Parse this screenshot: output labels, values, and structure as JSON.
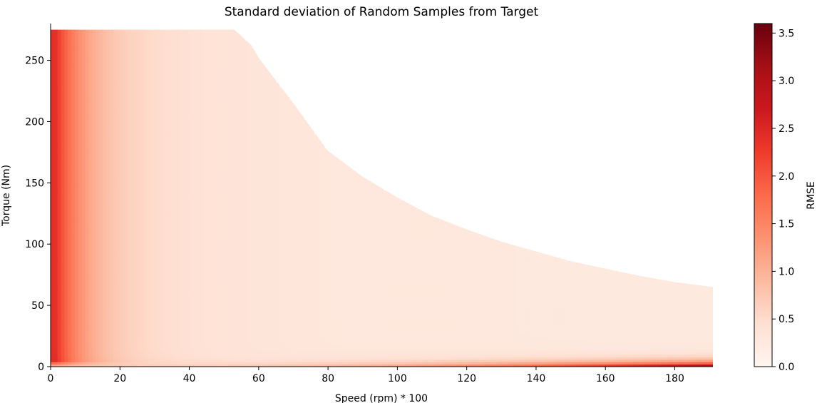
{
  "chart_data": {
    "type": "heatmap",
    "title": "Standard deviation of Random Samples from Target",
    "xlabel": "Speed (rpm) * 100",
    "ylabel": "Torque (Nm)",
    "colorbar_label": "RMSE",
    "colormap": "Reds",
    "xlim": [
      0,
      191
    ],
    "ylim": [
      0,
      280
    ],
    "x_ticks": [
      0,
      20,
      40,
      60,
      80,
      100,
      120,
      140,
      160,
      180
    ],
    "y_ticks": [
      0,
      50,
      100,
      150,
      200,
      250
    ],
    "colorbar_ticks": [
      0.0,
      0.5,
      1.0,
      1.5,
      2.0,
      2.5,
      3.0,
      3.5
    ],
    "colorbar_range": [
      0,
      3.6
    ],
    "torque_envelope": [
      {
        "speed": 0,
        "max_torque": 275
      },
      {
        "speed": 20,
        "max_torque": 275
      },
      {
        "speed": 40,
        "max_torque": 275
      },
      {
        "speed": 53,
        "max_torque": 275
      },
      {
        "speed": 58,
        "max_torque": 262
      },
      {
        "speed": 60,
        "max_torque": 252
      },
      {
        "speed": 70,
        "max_torque": 215
      },
      {
        "speed": 80,
        "max_torque": 176
      },
      {
        "speed": 90,
        "max_torque": 155
      },
      {
        "speed": 100,
        "max_torque": 138
      },
      {
        "speed": 110,
        "max_torque": 123
      },
      {
        "speed": 120,
        "max_torque": 112
      },
      {
        "speed": 130,
        "max_torque": 102
      },
      {
        "speed": 140,
        "max_torque": 94
      },
      {
        "speed": 150,
        "max_torque": 86
      },
      {
        "speed": 160,
        "max_torque": 80
      },
      {
        "speed": 170,
        "max_torque": 74
      },
      {
        "speed": 180,
        "max_torque": 69
      },
      {
        "speed": 191,
        "max_torque": 65
      }
    ],
    "features": [
      {
        "region": "low-speed column",
        "speed_range": [
          0,
          10
        ],
        "torque_range": [
          5,
          265
        ],
        "rmse_peak": 1.8
      },
      {
        "region": "near-zero torque band",
        "speed_range": [
          100,
          191
        ],
        "torque_range": [
          0,
          8
        ],
        "rmse_peak": 3.5
      },
      {
        "region": "bulk operating area",
        "speed_range": [
          10,
          191
        ],
        "torque_range": [
          10,
          275
        ],
        "rmse_typical": 0.25
      }
    ],
    "grid": false,
    "legend": "colorbar-right"
  },
  "colors": {
    "cmap_stops": [
      "#fff5f0",
      "#fee0d2",
      "#fcbba1",
      "#fc9272",
      "#fb6a4a",
      "#ef3b2c",
      "#cb181d",
      "#a50f15",
      "#67000d"
    ]
  }
}
